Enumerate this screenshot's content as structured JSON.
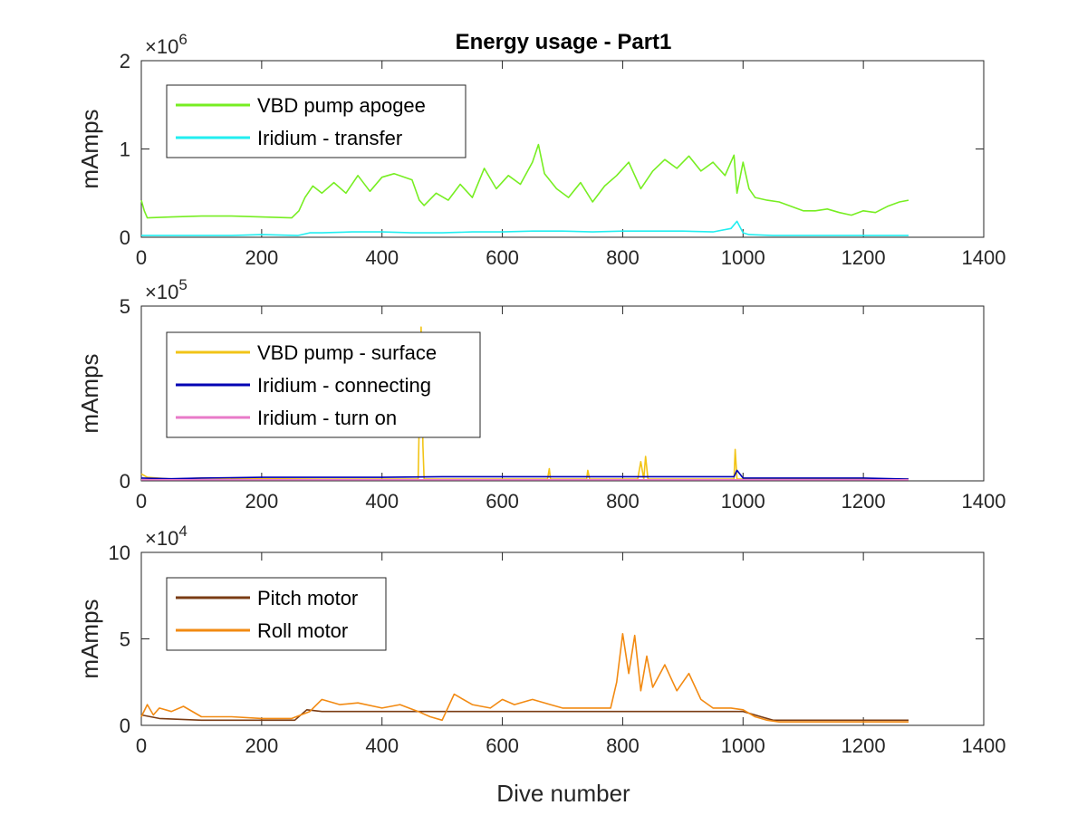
{
  "chart_data": [
    {
      "type": "line",
      "title": "Energy usage - Part1",
      "xlabel": "",
      "ylabel": "mAmps",
      "multiplier_base": "10",
      "multiplier_exp": "6",
      "xlim": [
        0,
        1400
      ],
      "ylim": [
        0,
        2
      ],
      "xticks": [
        "0",
        "200",
        "400",
        "600",
        "800",
        "1000",
        "1200",
        "1400"
      ],
      "yticks": [
        "0",
        "1",
        "2"
      ],
      "legend_position": "top-left",
      "series": [
        {
          "name": "VBD pump apogee",
          "color": "#77ee22",
          "x": [
            0,
            5,
            10,
            50,
            100,
            150,
            200,
            250,
            262,
            272,
            285,
            300,
            320,
            340,
            360,
            380,
            400,
            420,
            450,
            462,
            470,
            490,
            510,
            530,
            550,
            570,
            590,
            610,
            630,
            650,
            660,
            670,
            690,
            710,
            730,
            750,
            770,
            790,
            810,
            830,
            850,
            870,
            890,
            910,
            930,
            950,
            970,
            985,
            990,
            1000,
            1010,
            1020,
            1040,
            1060,
            1080,
            1100,
            1120,
            1140,
            1160,
            1180,
            1200,
            1220,
            1240,
            1260,
            1275
          ],
          "y": [
            0.42,
            0.3,
            0.22,
            0.23,
            0.24,
            0.24,
            0.23,
            0.22,
            0.3,
            0.45,
            0.58,
            0.5,
            0.62,
            0.5,
            0.7,
            0.52,
            0.68,
            0.72,
            0.65,
            0.42,
            0.36,
            0.5,
            0.42,
            0.6,
            0.45,
            0.78,
            0.55,
            0.7,
            0.6,
            0.85,
            1.05,
            0.72,
            0.55,
            0.45,
            0.62,
            0.4,
            0.58,
            0.7,
            0.85,
            0.55,
            0.75,
            0.88,
            0.78,
            0.92,
            0.75,
            0.85,
            0.7,
            0.93,
            0.5,
            0.85,
            0.55,
            0.45,
            0.42,
            0.4,
            0.35,
            0.3,
            0.3,
            0.32,
            0.28,
            0.25,
            0.3,
            0.28,
            0.35,
            0.4,
            0.42
          ]
        },
        {
          "name": "Iridium - transfer",
          "color": "#22eef0",
          "x": [
            0,
            50,
            100,
            150,
            200,
            260,
            280,
            300,
            350,
            400,
            450,
            500,
            550,
            600,
            650,
            700,
            750,
            800,
            850,
            900,
            950,
            980,
            990,
            1000,
            1010,
            1050,
            1100,
            1150,
            1200,
            1250,
            1275
          ],
          "y": [
            0.02,
            0.02,
            0.02,
            0.02,
            0.03,
            0.02,
            0.05,
            0.05,
            0.06,
            0.06,
            0.05,
            0.05,
            0.06,
            0.06,
            0.07,
            0.07,
            0.06,
            0.07,
            0.07,
            0.07,
            0.06,
            0.1,
            0.18,
            0.05,
            0.03,
            0.02,
            0.02,
            0.02,
            0.02,
            0.02,
            0.02
          ]
        }
      ]
    },
    {
      "type": "line",
      "title": "",
      "xlabel": "",
      "ylabel": "mAmps",
      "multiplier_base": "10",
      "multiplier_exp": "5",
      "xlim": [
        0,
        1400
      ],
      "ylim": [
        0,
        5
      ],
      "xticks": [
        "0",
        "200",
        "400",
        "600",
        "800",
        "1000",
        "1200",
        "1400"
      ],
      "yticks": [
        "0",
        "5"
      ],
      "legend_position": "top-left",
      "series": [
        {
          "name": "VBD pump - surface",
          "color": "#f2c417",
          "x": [
            0,
            10,
            50,
            100,
            200,
            300,
            400,
            460,
            465,
            468,
            470,
            475,
            500,
            600,
            675,
            678,
            680,
            700,
            740,
            742,
            745,
            800,
            825,
            830,
            835,
            838,
            842,
            850,
            900,
            985,
            987,
            990,
            1000,
            1100,
            1200,
            1275
          ],
          "y": [
            0.2,
            0.1,
            0.05,
            0.08,
            0.06,
            0.05,
            0.05,
            0.05,
            4.4,
            1.0,
            0.05,
            0.05,
            0.05,
            0.05,
            0.05,
            0.35,
            0.05,
            0.05,
            0.05,
            0.3,
            0.05,
            0.05,
            0.05,
            0.55,
            0.05,
            0.7,
            0.05,
            0.05,
            0.05,
            0.05,
            0.9,
            0.05,
            0.05,
            0.05,
            0.05,
            0.05
          ]
        },
        {
          "name": "Iridium - connecting",
          "color": "#0000b4",
          "x": [
            0,
            50,
            100,
            200,
            300,
            400,
            500,
            600,
            700,
            800,
            900,
            985,
            990,
            1000,
            1100,
            1200,
            1275
          ],
          "y": [
            0.08,
            0.06,
            0.08,
            0.1,
            0.1,
            0.1,
            0.12,
            0.12,
            0.12,
            0.12,
            0.12,
            0.12,
            0.3,
            0.08,
            0.08,
            0.08,
            0.05
          ]
        },
        {
          "name": "Iridium - turn on",
          "color": "#e87ac8",
          "x": [
            0,
            200,
            400,
            600,
            800,
            1000,
            1200,
            1275
          ],
          "y": [
            0.03,
            0.03,
            0.03,
            0.03,
            0.03,
            0.03,
            0.03,
            0.03
          ]
        }
      ]
    },
    {
      "type": "line",
      "title": "",
      "xlabel": "Dive number",
      "ylabel": "mAmps",
      "multiplier_base": "10",
      "multiplier_exp": "4",
      "xlim": [
        0,
        1400
      ],
      "ylim": [
        0,
        10
      ],
      "xticks": [
        "0",
        "200",
        "400",
        "600",
        "800",
        "1000",
        "1200",
        "1400"
      ],
      "yticks": [
        "0",
        "5",
        "10"
      ],
      "legend_position": "top-left",
      "series": [
        {
          "name": "Pitch motor",
          "color": "#7a3c14",
          "x": [
            0,
            30,
            100,
            200,
            255,
            275,
            300,
            400,
            500,
            600,
            700,
            800,
            900,
            1000,
            1030,
            1050,
            1100,
            1200,
            1275
          ],
          "y": [
            0.6,
            0.4,
            0.3,
            0.3,
            0.3,
            0.9,
            0.8,
            0.8,
            0.8,
            0.8,
            0.8,
            0.8,
            0.8,
            0.8,
            0.5,
            0.3,
            0.3,
            0.3,
            0.3
          ]
        },
        {
          "name": "Roll motor",
          "color": "#f28a12",
          "x": [
            0,
            10,
            20,
            30,
            50,
            70,
            100,
            150,
            200,
            250,
            280,
            300,
            330,
            360,
            400,
            430,
            460,
            480,
            500,
            520,
            550,
            580,
            600,
            620,
            650,
            680,
            700,
            750,
            780,
            790,
            800,
            810,
            820,
            830,
            840,
            850,
            870,
            890,
            910,
            930,
            950,
            980,
            1000,
            1020,
            1040,
            1060,
            1100,
            1150,
            1200,
            1250,
            1275
          ],
          "y": [
            0.5,
            1.2,
            0.6,
            1.0,
            0.8,
            1.1,
            0.5,
            0.5,
            0.4,
            0.4,
            0.8,
            1.5,
            1.2,
            1.3,
            1.0,
            1.2,
            0.8,
            0.5,
            0.3,
            1.8,
            1.2,
            1.0,
            1.5,
            1.2,
            1.5,
            1.2,
            1.0,
            1.0,
            1.0,
            2.5,
            5.3,
            3.0,
            5.2,
            2.0,
            4.0,
            2.2,
            3.5,
            2.0,
            3.0,
            1.5,
            1.0,
            1.0,
            0.9,
            0.5,
            0.3,
            0.2,
            0.2,
            0.2,
            0.2,
            0.2,
            0.2
          ]
        }
      ]
    }
  ]
}
